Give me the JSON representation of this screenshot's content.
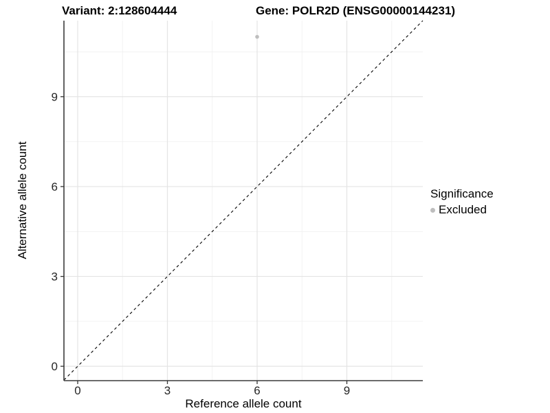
{
  "header": {
    "variant_title": "Variant: 2:128604444",
    "gene_title": "Gene: POLR2D (ENSG00000144231)"
  },
  "chart_data": {
    "type": "scatter",
    "title_left": "Variant: 2:128604444",
    "title_right": "Gene: POLR2D (ENSG00000144231)",
    "xlabel": "Reference allele count",
    "ylabel": "Alternative allele count",
    "xlim": [
      -0.46,
      11.54
    ],
    "ylim": [
      -0.48,
      11.54
    ],
    "xticks": [
      0,
      3,
      6,
      9
    ],
    "yticks": [
      0,
      3,
      6,
      9
    ],
    "x_minor_ticks": [
      1.5,
      4.5,
      7.5,
      10.5
    ],
    "y_minor_ticks": [
      1.5,
      4.5,
      7.5,
      10.5
    ],
    "grid": true,
    "identity_line": {
      "type": "dashed",
      "color": "#000000",
      "from": -0.46,
      "to": 11.54
    },
    "series": [
      {
        "name": "Excluded",
        "color": "#bebebe",
        "points": [
          {
            "x": 6,
            "y": 11
          }
        ]
      }
    ],
    "legend": {
      "title": "Significance",
      "position": "right",
      "entries": [
        {
          "label": "Excluded",
          "color": "#bebebe"
        }
      ]
    },
    "colors": {
      "grid_major": "#e4e4e4",
      "grid_minor": "#f1f1f1",
      "axis_line": "#3a3a3a",
      "tick_mark": "#333333",
      "tick_label": "#262626"
    }
  }
}
